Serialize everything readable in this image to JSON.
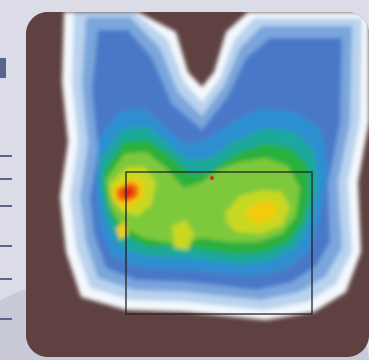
{
  "figure": {
    "type": "pressure-heatmap",
    "colors": {
      "frame": "#5e4140",
      "page_background": "#dcdce8",
      "accent_bar": "#5a6490",
      "selection_box": "#222222",
      "center_marker": "#cc3322"
    },
    "color_scale": [
      "#f4f8fc",
      "#b9d3ee",
      "#7aa6dc",
      "#4a78c8",
      "#2e8fd0",
      "#1aa89a",
      "#2cb03c",
      "#7ec93a",
      "#c8d820",
      "#f0cc10",
      "#f26010",
      "#e02010"
    ],
    "selection_box": {
      "visible": true
    },
    "center_marker": {
      "visible": true
    }
  }
}
